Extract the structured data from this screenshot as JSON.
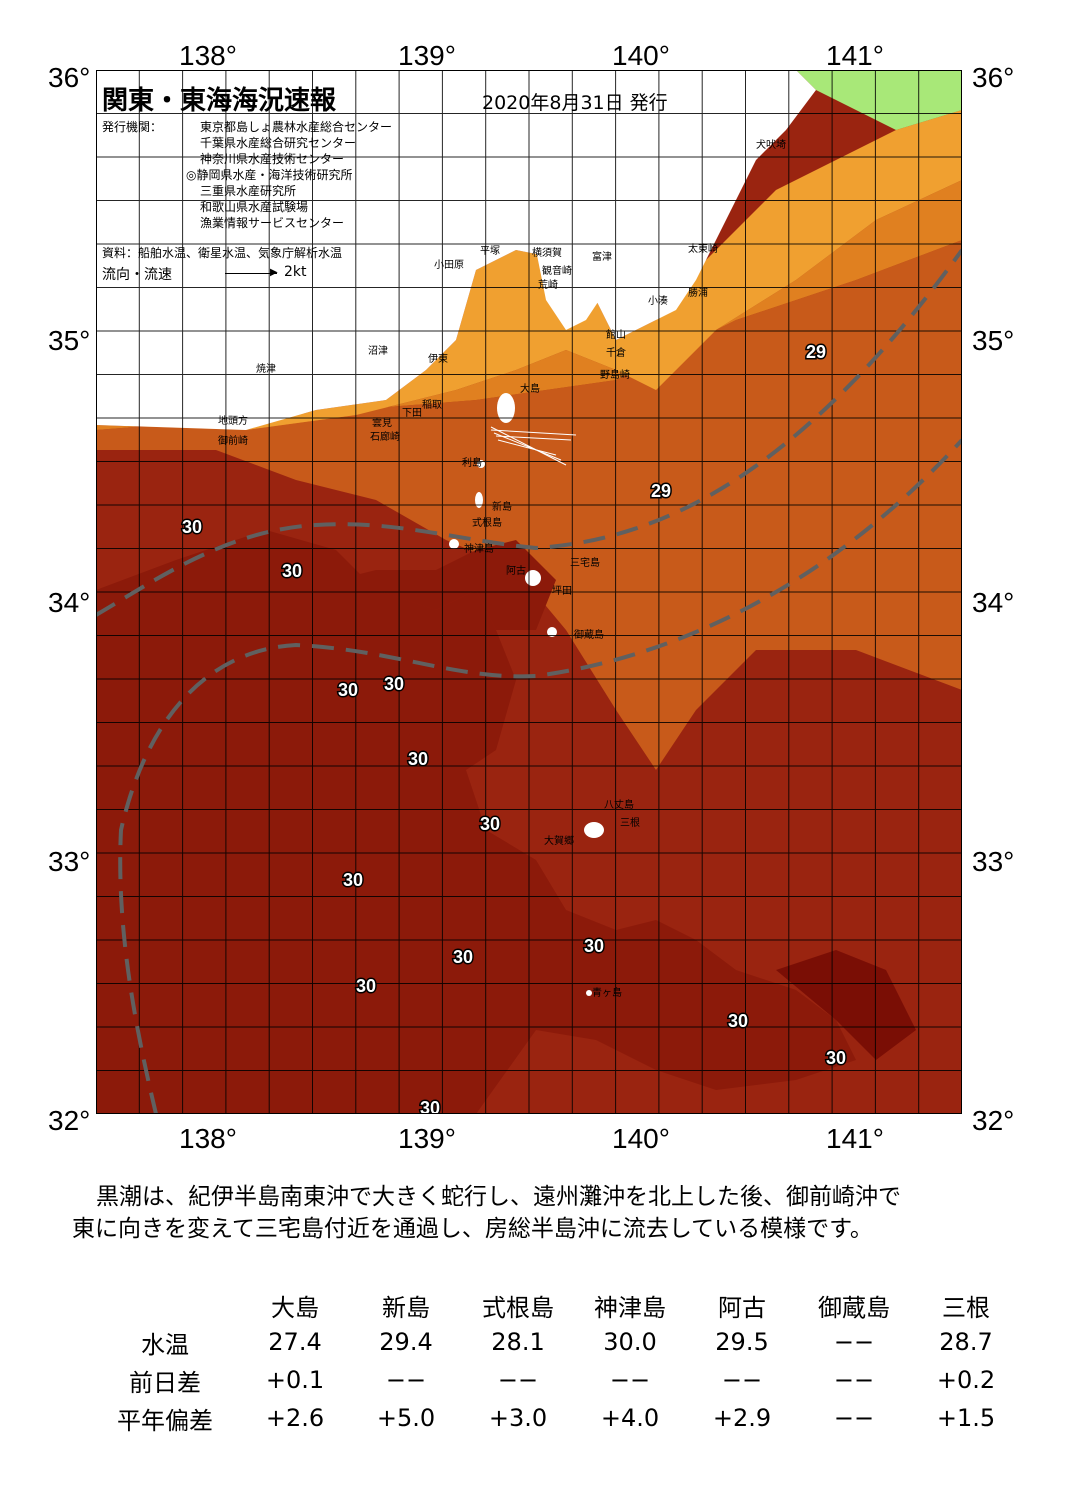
{
  "axes": {
    "top_lon": [
      "138°",
      "139°",
      "140°",
      "141°"
    ],
    "bottom_lon": [
      "138°",
      "139°",
      "140°",
      "141°"
    ],
    "left_lat": [
      "36°",
      "35°",
      "34°",
      "33°",
      "32°"
    ],
    "right_lat": [
      "36°",
      "35°",
      "34°",
      "33°",
      "32°"
    ]
  },
  "header": {
    "title": "関東・東海海況速報",
    "date": "2020年8月31日 発行",
    "issuer_label": "発行機関：",
    "issuers": [
      "東京都島しょ農林水産総合センター",
      "千葉県水産総合研究センター",
      "神奈川県水産技術センター",
      "◎静岡県水産・海洋技術研究所",
      "三重県水産研究所",
      "和歌山県水産試験場",
      "漁業情報サービスセンター"
    ],
    "source": "資料：船舶水温、衛星水温、気象庁解析水温",
    "flow_label": "流向・流速",
    "flow_scale": "2kt"
  },
  "places": [
    {
      "name": "犬吠埼"
    },
    {
      "name": "太東崎"
    },
    {
      "name": "勝浦"
    },
    {
      "name": "小湊"
    },
    {
      "name": "富津"
    },
    {
      "name": "観音崎"
    },
    {
      "name": "荒崎"
    },
    {
      "name": "横須賀"
    },
    {
      "name": "平塚"
    },
    {
      "name": "小田原"
    },
    {
      "name": "館山"
    },
    {
      "name": "千倉"
    },
    {
      "name": "野島崎"
    },
    {
      "name": "沼津"
    },
    {
      "name": "伊東"
    },
    {
      "name": "焼津"
    },
    {
      "name": "稲取"
    },
    {
      "name": "下田"
    },
    {
      "name": "雲見"
    },
    {
      "name": "石廊崎"
    },
    {
      "name": "地頭方"
    },
    {
      "name": "御前崎"
    },
    {
      "name": "大島"
    },
    {
      "name": "利島"
    },
    {
      "name": "新島"
    },
    {
      "name": "式根島"
    },
    {
      "name": "神津島"
    },
    {
      "name": "三宅島"
    },
    {
      "name": "阿古"
    },
    {
      "name": "坪田"
    },
    {
      "name": "御蔵島"
    },
    {
      "name": "八丈島"
    },
    {
      "name": "三根"
    },
    {
      "name": "大賀郷"
    },
    {
      "name": "青ヶ島"
    }
  ],
  "contour_labels": [
    "29",
    "29",
    "30",
    "30",
    "30",
    "30",
    "30",
    "30",
    "30",
    "30",
    "30",
    "30",
    "30",
    "30",
    "30",
    "30"
  ],
  "colors": {
    "land": "#ffffff",
    "temp_26": "#f8c040",
    "temp_27": "#f0a030",
    "temp_28": "#e08020",
    "temp_29": "#c85a1a",
    "temp_29_5": "#a83212",
    "temp_30": "#8c1a0a",
    "temp_30_plus": "#7a0e05",
    "cold_green": "#a8e878",
    "kuroshio_axis": "#606060"
  },
  "description": {
    "line1": "黒潮は、紀伊半島南東沖で大きく蛇行し、遠州灘沖を北上した後、御前崎沖で",
    "line2": "東に向きを変えて三宅島付近を通過し、房総半島沖に流去している模様です。"
  },
  "table": {
    "columns": [
      "大島",
      "新島",
      "式根島",
      "神津島",
      "阿古",
      "御蔵島",
      "三根"
    ],
    "rows": [
      {
        "label": "水温",
        "values": [
          "27.4",
          "29.4",
          "28.1",
          "30.0",
          "29.5",
          "−−",
          "28.7"
        ]
      },
      {
        "label": "前日差",
        "values": [
          "+0.1",
          "−−",
          "−−",
          "−−",
          "−−",
          "−−",
          "+0.2"
        ]
      },
      {
        "label": "平年偏差",
        "values": [
          "+2.6",
          "+5.0",
          "+3.0",
          "+4.0",
          "+2.9",
          "−−",
          "+1.5"
        ]
      }
    ]
  }
}
